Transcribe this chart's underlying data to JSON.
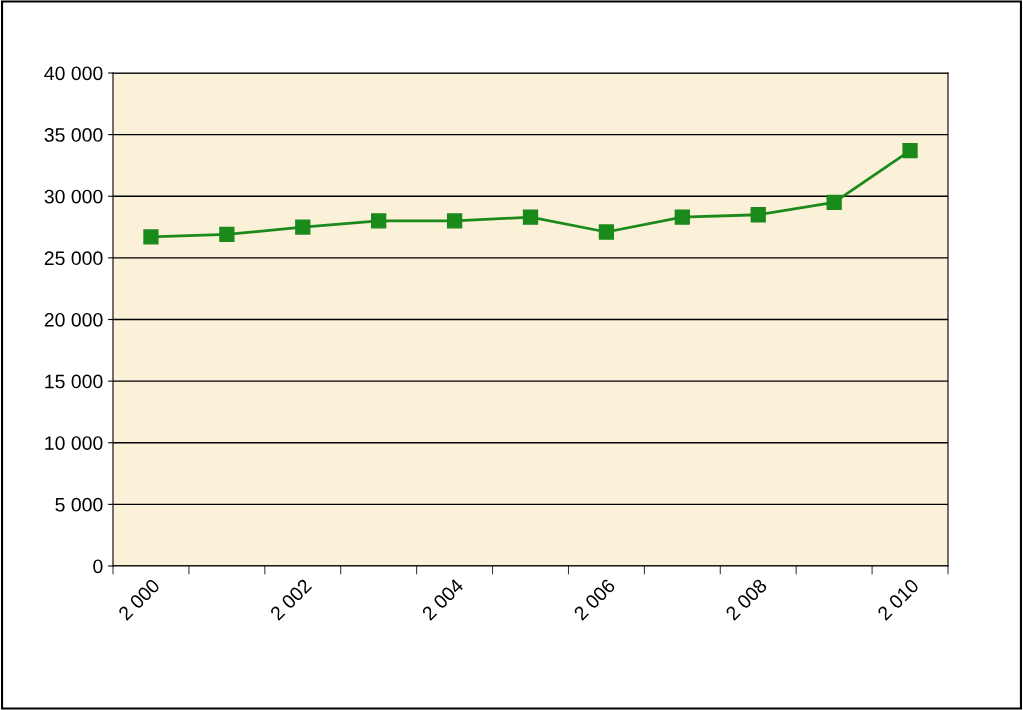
{
  "chart_data": {
    "type": "line",
    "categories": [
      "2 000",
      null,
      "2 002",
      null,
      "2 004",
      null,
      "2 006",
      null,
      "2 008",
      null,
      "2 010"
    ],
    "series": [
      {
        "color": "#1a8a1a",
        "values": [
          26700,
          26900,
          27500,
          28000,
          28000,
          28300,
          27100,
          28300,
          28500,
          29500,
          33700
        ]
      }
    ],
    "ylim": [
      0,
      40000
    ],
    "yticks": [
      {
        "value": 0,
        "label": "0"
      },
      {
        "value": 5000,
        "label": "5 000"
      },
      {
        "value": 10000,
        "label": "10 000"
      },
      {
        "value": 15000,
        "label": "15 000"
      },
      {
        "value": 20000,
        "label": "20 000"
      },
      {
        "value": 25000,
        "label": "25 000"
      },
      {
        "value": 30000,
        "label": "30 000"
      },
      {
        "value": 35000,
        "label": "35 000"
      },
      {
        "value": 40000,
        "label": "40 000"
      }
    ],
    "grid": "y",
    "marker": "square",
    "line_style": "solid",
    "legend": false
  }
}
